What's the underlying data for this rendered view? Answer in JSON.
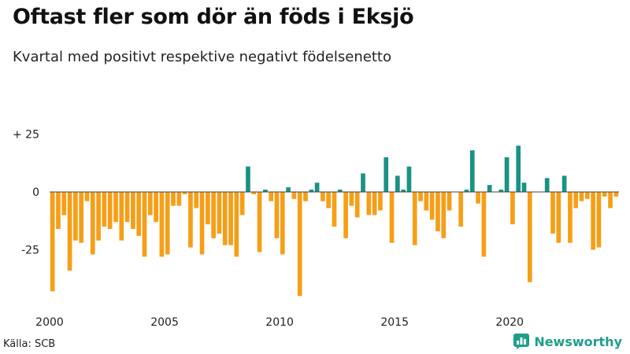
{
  "header": {
    "title": "Oftast fler som dör än föds i Eksjö",
    "subtitle": "Kvartal med positivt respektive negativt födelsenetto"
  },
  "footer": {
    "source": "Källa: SCB",
    "brand": "Newsworthy"
  },
  "colors": {
    "positive": "#1a9285",
    "negative": "#f59f18",
    "zero_line": "#444444",
    "brand": "#1f9e8c"
  },
  "chart_data": {
    "type": "bar",
    "x_start": 2000,
    "periods_per_year": 4,
    "x_ticks": [
      "2000",
      "2005",
      "2010",
      "2015",
      "2020"
    ],
    "y_ticks": [
      {
        "value": 25,
        "label": "+ 25"
      },
      {
        "value": 0,
        "label": "0"
      },
      {
        "value": -25,
        "label": "-25"
      }
    ],
    "ylim": [
      -46,
      30
    ],
    "values": [
      -43,
      -16,
      -10,
      -34,
      -21,
      -22,
      -4,
      -27,
      -21,
      -15,
      -16,
      -13,
      -21,
      -13,
      -16,
      -19,
      -28,
      -10,
      -13,
      -28,
      -27,
      -6,
      -6,
      -1,
      -24,
      -7,
      -27,
      -14,
      -20,
      -18,
      -23,
      -23,
      -28,
      -10,
      11,
      -1,
      -26,
      1,
      -4,
      -20,
      -27,
      2,
      -3,
      -45,
      -4,
      1,
      4,
      -4,
      -7,
      -15,
      1,
      -20,
      -6,
      -11,
      8,
      -10,
      -10,
      -8,
      15,
      -22,
      7,
      1,
      11,
      -23,
      -4,
      -8,
      -12,
      -17,
      -20,
      -8,
      0,
      -15,
      1,
      18,
      -5,
      -28,
      3,
      0,
      1,
      15,
      -14,
      20,
      4,
      -39,
      0,
      0,
      6,
      -18,
      -22,
      7,
      -22,
      -7,
      -4,
      -3,
      -25,
      -24,
      -2,
      -7,
      -2
    ]
  }
}
